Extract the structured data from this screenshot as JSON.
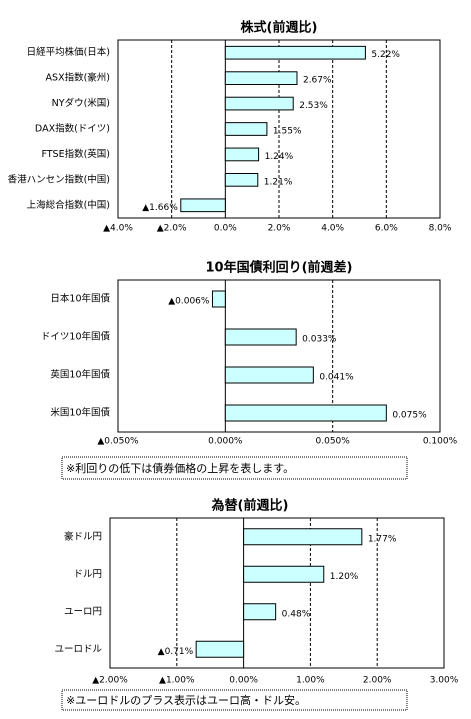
{
  "chart_data": [
    {
      "type": "bar",
      "orientation": "horizontal",
      "title": "株式(前週比)",
      "categories": [
        "日経平均株価(日本)",
        "ASX指数(豪州)",
        "NYダウ(米国)",
        "DAX指数(ドイツ)",
        "FTSE指数(英国)",
        "香港ハンセン指数(中国)",
        "上海総合指数(中国)"
      ],
      "values": [
        5.22,
        2.67,
        2.53,
        1.55,
        1.24,
        1.21,
        -1.66
      ],
      "value_labels": [
        "5.22%",
        "2.67%",
        "2.53%",
        "1.55%",
        "1.24%",
        "1.21%",
        "▲1.66%"
      ],
      "color": "#ccffff",
      "negative_label_color": "#ff0000",
      "grid": true,
      "xlim": [
        -4,
        8
      ],
      "xticks": [
        {
          "value": -4,
          "label": "▲4.0%"
        },
        {
          "value": -2,
          "label": "▲2.0%"
        },
        {
          "value": 0,
          "label": "0.0%"
        },
        {
          "value": 2,
          "label": "2.0%"
        },
        {
          "value": 4,
          "label": "4.0%"
        },
        {
          "value": 6,
          "label": "6.0%"
        },
        {
          "value": 8,
          "label": "8.0%"
        }
      ]
    },
    {
      "type": "bar",
      "orientation": "horizontal",
      "title": "10年国債利回り(前週差)",
      "categories": [
        "日本10年国債",
        "ドイツ10年国債",
        "英国10年国債",
        "米国10年国債"
      ],
      "values": [
        -0.006,
        0.033,
        0.041,
        0.075
      ],
      "value_labels": [
        "▲0.006%",
        "0.033%",
        "0.041%",
        "0.075%"
      ],
      "color": "#ccffff",
      "negative_label_color": "#ff0000",
      "grid": true,
      "xlim": [
        -0.05,
        0.1
      ],
      "xticks": [
        {
          "value": -0.05,
          "label": "▲0.050%"
        },
        {
          "value": 0,
          "label": "0.000%"
        },
        {
          "value": 0.05,
          "label": "0.050%"
        },
        {
          "value": 0.1,
          "label": "0.100%"
        }
      ],
      "note": "※利回りの低下は債券価格の上昇を表します。"
    },
    {
      "type": "bar",
      "orientation": "horizontal",
      "title": "為替(前週比)",
      "categories": [
        "豪ドル円",
        "ドル円",
        "ユーロ円",
        "ユーロドル"
      ],
      "values": [
        1.77,
        1.2,
        0.48,
        -0.71
      ],
      "value_labels": [
        "1.77%",
        "1.20%",
        "0.48%",
        "▲0.71%"
      ],
      "color": "#ccffff",
      "negative_label_color": "#ff0000",
      "grid": true,
      "xlim": [
        -2,
        3
      ],
      "xticks": [
        {
          "value": -2,
          "label": "▲2.00%"
        },
        {
          "value": -1,
          "label": "▲1.00%"
        },
        {
          "value": 0,
          "label": "0.00%"
        },
        {
          "value": 1,
          "label": "1.00%"
        },
        {
          "value": 2,
          "label": "2.00%"
        },
        {
          "value": 3,
          "label": "3.00%"
        }
      ],
      "note": "※ユーロドルのプラス表示はユーロ高・ドル安。"
    }
  ]
}
